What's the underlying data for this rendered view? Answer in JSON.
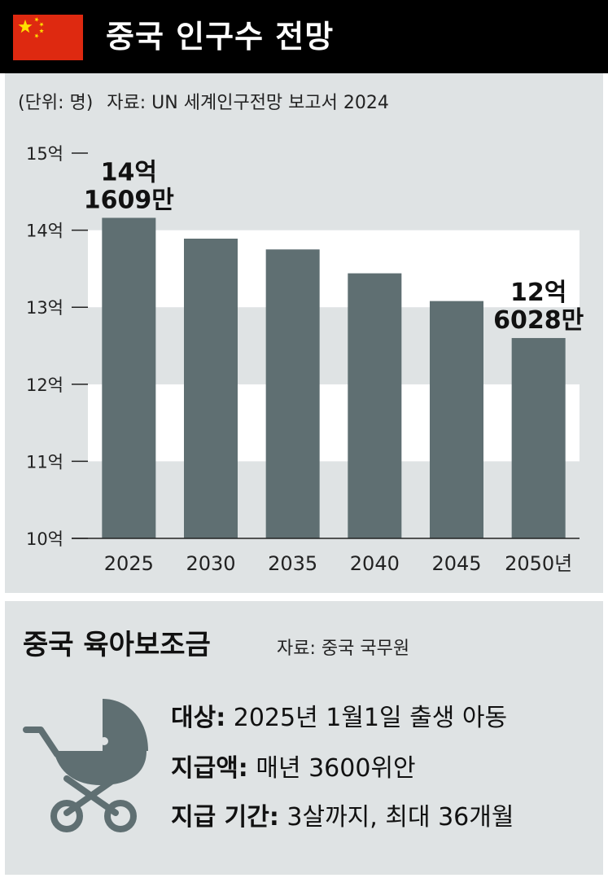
{
  "header": {
    "title": "중국 인구수 전망",
    "flag_colors": {
      "field": "#de2910",
      "stars": "#ffde00"
    }
  },
  "meta": {
    "unit": "(단위: 명)",
    "source": "자료: UN 세계인구전망 보고서 2024"
  },
  "chart_data": {
    "type": "bar",
    "categories": [
      "2025",
      "2030",
      "2035",
      "2040",
      "2045",
      "2050년"
    ],
    "values": [
      14.16,
      13.89,
      13.75,
      13.44,
      13.08,
      12.6
    ],
    "value_unit": "억",
    "ylim": [
      10,
      15
    ],
    "yticks": [
      {
        "value": 15,
        "label": "15억"
      },
      {
        "value": 14,
        "label": "14억"
      },
      {
        "value": 13,
        "label": "13억"
      },
      {
        "value": 12,
        "label": "12억"
      },
      {
        "value": 11,
        "label": "11억"
      },
      {
        "value": 10,
        "label": "10억"
      }
    ],
    "annotations": [
      {
        "index": 0,
        "lines": [
          "14억",
          "1609만"
        ]
      },
      {
        "index": 5,
        "lines": [
          "12억",
          "6028만"
        ]
      }
    ],
    "bar_color": "#5f6f72",
    "band_color": "#ffffff",
    "background_color": "#dfe3e4",
    "grid": "alternating horizontal bands",
    "legend": "none"
  },
  "subsidy": {
    "title": "중국 육아보조금",
    "source": "자료: 중국 국무원",
    "icon": "stroller-icon",
    "rows": [
      {
        "label": "대상:",
        "value": "2025년 1월1일 출생 아동"
      },
      {
        "label": "지급액:",
        "value": "매년 3600위안"
      },
      {
        "label": "지급 기간:",
        "value": "3살까지, 최대 36개월"
      }
    ]
  }
}
